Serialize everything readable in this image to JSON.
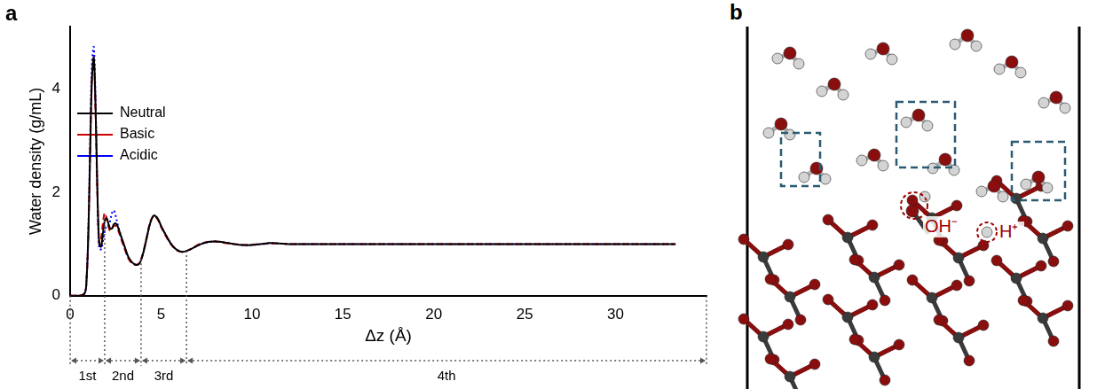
{
  "chart_data": {
    "type": "line",
    "panel_label": "a",
    "x_label": "Δz (Å)",
    "y_label": "Water density (g/mL)",
    "xlim": [
      0,
      35
    ],
    "xticks": [
      0,
      5,
      10,
      15,
      20,
      25,
      30
    ],
    "ylim": [
      0,
      5.2
    ],
    "yticks": [
      0,
      2,
      4
    ],
    "grid": false,
    "legend": "top",
    "x": [
      0,
      0.5,
      0.8,
      0.9,
      1.0,
      1.1,
      1.2,
      1.3,
      1.4,
      1.5,
      1.6,
      1.7,
      1.8,
      1.9,
      2.0,
      2.1,
      2.2,
      2.3,
      2.4,
      2.5,
      2.6,
      2.8,
      3.0,
      3.2,
      3.4,
      3.6,
      3.8,
      4.0,
      4.2,
      4.4,
      4.6,
      4.8,
      5.0,
      5.3,
      5.6,
      5.9,
      6.2,
      6.5,
      6.8,
      7.2,
      7.6,
      8.0,
      8.5,
      9.0,
      9.5,
      10,
      10.5,
      11,
      11.5,
      12,
      13,
      14,
      15,
      17,
      20,
      25,
      30,
      33.3
    ],
    "series": [
      {
        "name": "Neutral",
        "color": "#000000",
        "line_style": "solid",
        "values": [
          0,
          0,
          0.05,
          0.3,
          1.2,
          2.8,
          4.2,
          4.6,
          3.6,
          2.0,
          1.0,
          0.95,
          1.2,
          1.45,
          1.5,
          1.4,
          1.3,
          1.3,
          1.38,
          1.4,
          1.35,
          1.15,
          0.95,
          0.75,
          0.65,
          0.6,
          0.62,
          0.8,
          1.1,
          1.4,
          1.55,
          1.5,
          1.35,
          1.15,
          0.98,
          0.88,
          0.85,
          0.88,
          0.93,
          1.0,
          1.04,
          1.05,
          1.03,
          1.0,
          0.98,
          0.98,
          1.0,
          1.02,
          1.01,
          1.0,
          1.0,
          1.0,
          1.0,
          1.0,
          1.0,
          1.0,
          1.0,
          1.0
        ]
      },
      {
        "name": "Basic",
        "color": "#cc0000",
        "line_style": "dashed",
        "values": [
          0,
          0,
          0.05,
          0.3,
          1.2,
          2.8,
          4.2,
          4.55,
          3.5,
          1.9,
          1.0,
          1.1,
          1.4,
          1.6,
          1.5,
          1.35,
          1.25,
          1.3,
          1.35,
          1.35,
          1.3,
          1.1,
          0.9,
          0.72,
          0.63,
          0.6,
          0.63,
          0.82,
          1.12,
          1.42,
          1.55,
          1.48,
          1.33,
          1.13,
          0.97,
          0.87,
          0.85,
          0.88,
          0.94,
          1.01,
          1.04,
          1.05,
          1.02,
          1.0,
          0.98,
          0.99,
          1.0,
          1.01,
          1.01,
          1.0,
          1.0,
          1.0,
          1.0,
          1.0,
          1.0,
          1.0,
          1.0,
          1.0
        ]
      },
      {
        "name": "Acidic",
        "color": "#0000ff",
        "line_style": "dotted",
        "values": [
          0,
          0,
          0.05,
          0.32,
          1.3,
          3.0,
          4.5,
          4.8,
          3.7,
          2.0,
          0.9,
          0.9,
          1.05,
          1.25,
          1.35,
          1.35,
          1.45,
          1.6,
          1.65,
          1.55,
          1.4,
          1.15,
          0.93,
          0.74,
          0.64,
          0.6,
          0.63,
          0.8,
          1.1,
          1.4,
          1.54,
          1.5,
          1.35,
          1.15,
          0.98,
          0.88,
          0.85,
          0.88,
          0.93,
          1.0,
          1.04,
          1.05,
          1.03,
          1.0,
          0.98,
          0.98,
          1.0,
          1.02,
          1.01,
          1.0,
          1.0,
          1.0,
          1.0,
          1.0,
          1.0,
          1.0,
          1.0,
          1.0
        ]
      }
    ],
    "regions": [
      {
        "label": "1st",
        "from": 0,
        "to": 1.9
      },
      {
        "label": "2nd",
        "from": 1.9,
        "to": 3.9
      },
      {
        "label": "3rd",
        "from": 3.9,
        "to": 6.4
      },
      {
        "label": "4th",
        "from": 6.4,
        "to": 35
      }
    ]
  },
  "diagram": {
    "panel_label": "b",
    "labels": [
      "OH⁻",
      "H⁺"
    ]
  }
}
